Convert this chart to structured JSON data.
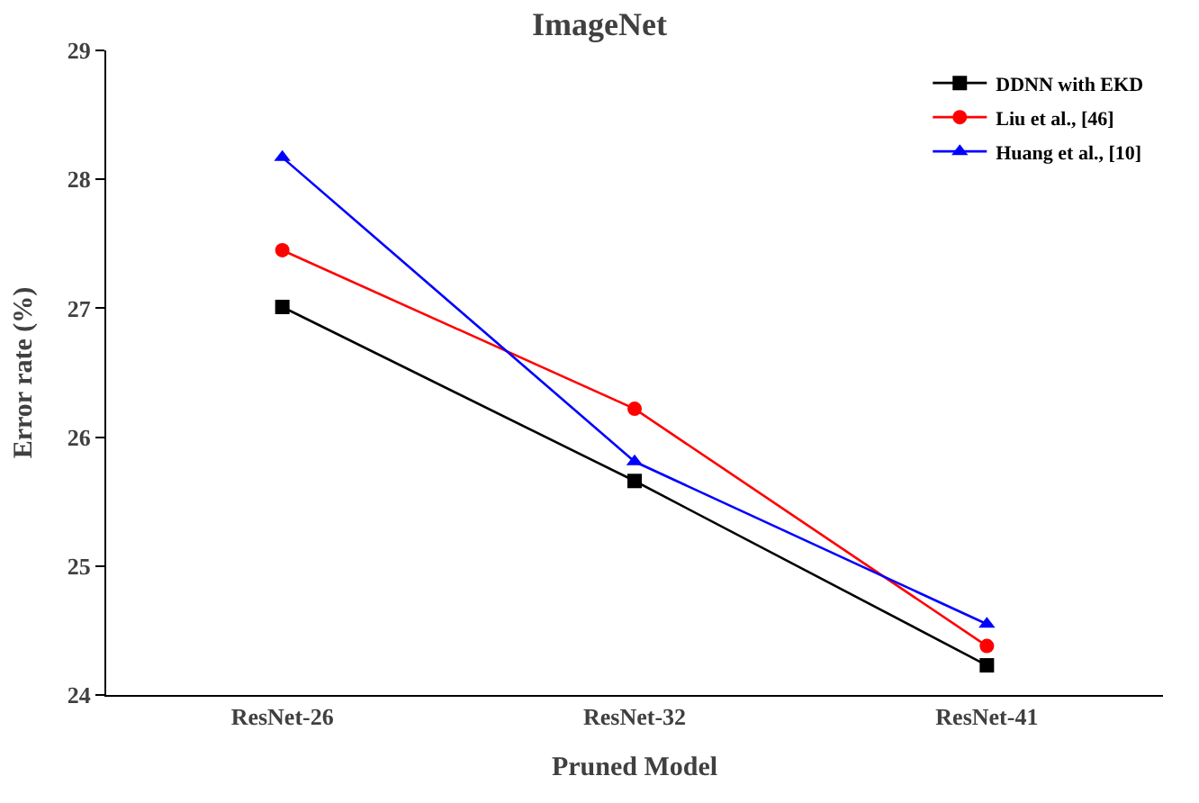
{
  "chart_data": {
    "type": "line",
    "title": "ImageNet",
    "xlabel": "Pruned Model",
    "ylabel": "Error rate (%)",
    "categories": [
      "ResNet-26",
      "ResNet-32",
      "ResNet-41"
    ],
    "series": [
      {
        "name": "DDNN with EKD",
        "color": "#000000",
        "marker": "square",
        "values": [
          27.01,
          25.66,
          24.23
        ]
      },
      {
        "name": "Liu et al., [46]",
        "color": "#ff0000",
        "marker": "circle",
        "values": [
          27.45,
          26.22,
          24.38
        ]
      },
      {
        "name": "Huang et al., [10]",
        "color": "#0000ff",
        "marker": "triangle",
        "values": [
          28.17,
          25.81,
          24.55
        ]
      }
    ],
    "ylim": [
      24,
      29
    ],
    "yticks": [
      24,
      25,
      26,
      27,
      28,
      29
    ],
    "legend": "top right",
    "line_style": "solid"
  }
}
